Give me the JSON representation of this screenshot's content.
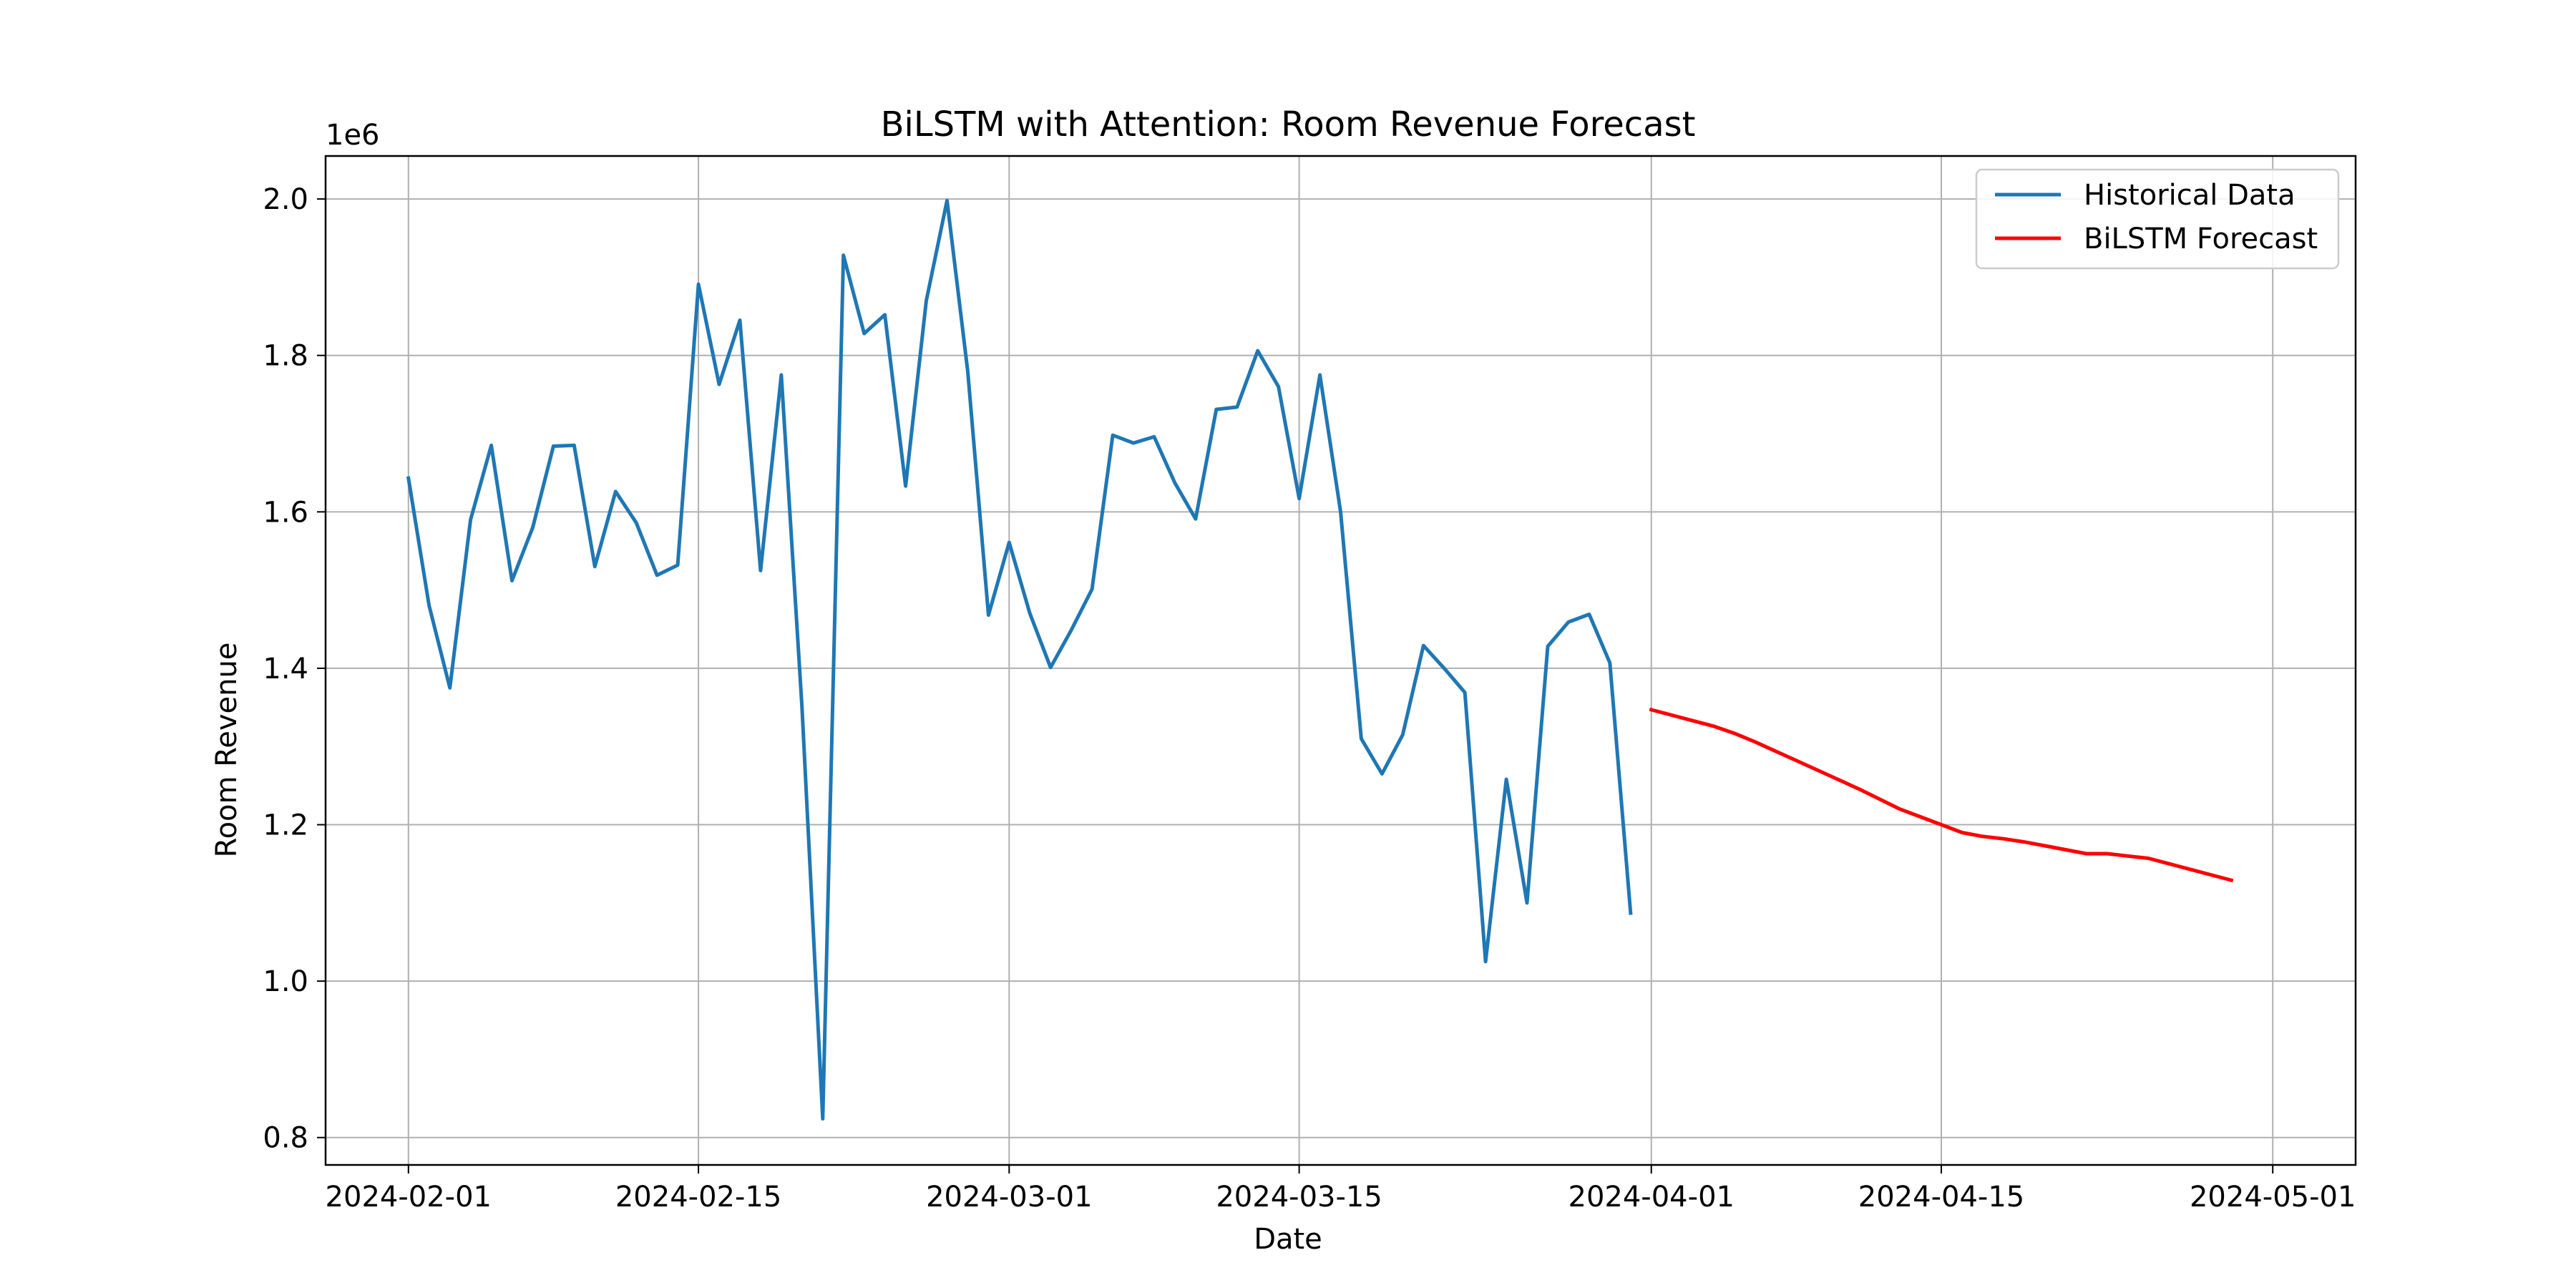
{
  "chart_data": {
    "type": "line",
    "title": "BiLSTM with Attention: Room Revenue Forecast",
    "xlabel": "Date",
    "ylabel": "Room Revenue",
    "y_offset_label": "1e6",
    "grid": true,
    "legend_position": "top-right",
    "xlim": [
      "2024-01-28",
      "2024-05-05"
    ],
    "ylim": [
      0.765,
      2.055
    ],
    "x_ticks": [
      "2024-02-01",
      "2024-02-15",
      "2024-03-01",
      "2024-03-15",
      "2024-04-01",
      "2024-04-15",
      "2024-05-01"
    ],
    "y_ticks": [
      "0.8",
      "1.0",
      "1.2",
      "1.4",
      "1.6",
      "1.8",
      "2.0"
    ],
    "series": [
      {
        "name": "Historical Data",
        "color": "#1f77b4",
        "start": "2024-02-01",
        "values": [
          1.643,
          1.48,
          1.375,
          1.59,
          1.685,
          1.512,
          1.58,
          1.684,
          1.685,
          1.53,
          1.626,
          1.586,
          1.519,
          1.532,
          1.891,
          1.763,
          1.845,
          1.525,
          1.775,
          1.35,
          0.824,
          1.928,
          1.828,
          1.852,
          1.633,
          1.87,
          1.998,
          1.78,
          1.468,
          1.561,
          1.47,
          1.401,
          1.449,
          1.501,
          1.698,
          1.688,
          1.696,
          1.637,
          1.591,
          1.731,
          1.734,
          1.806,
          1.76,
          1.617,
          1.775,
          1.6,
          1.31,
          1.265,
          1.315,
          1.429,
          1.4,
          1.369,
          1.025,
          1.258,
          1.1,
          1.428,
          1.459,
          1.469,
          1.407,
          1.087
        ]
      },
      {
        "name": "BiLSTM Forecast",
        "color": "#ff0000",
        "start": "2024-04-01",
        "values": [
          1.347,
          1.34,
          1.333,
          1.326,
          1.317,
          1.306,
          1.294,
          1.282,
          1.27,
          1.258,
          1.246,
          1.233,
          1.22,
          1.21,
          1.2,
          1.19,
          1.185,
          1.182,
          1.178,
          1.173,
          1.168,
          1.163,
          1.163,
          1.16,
          1.157,
          1.15,
          1.143,
          1.136,
          1.129
        ]
      }
    ]
  }
}
